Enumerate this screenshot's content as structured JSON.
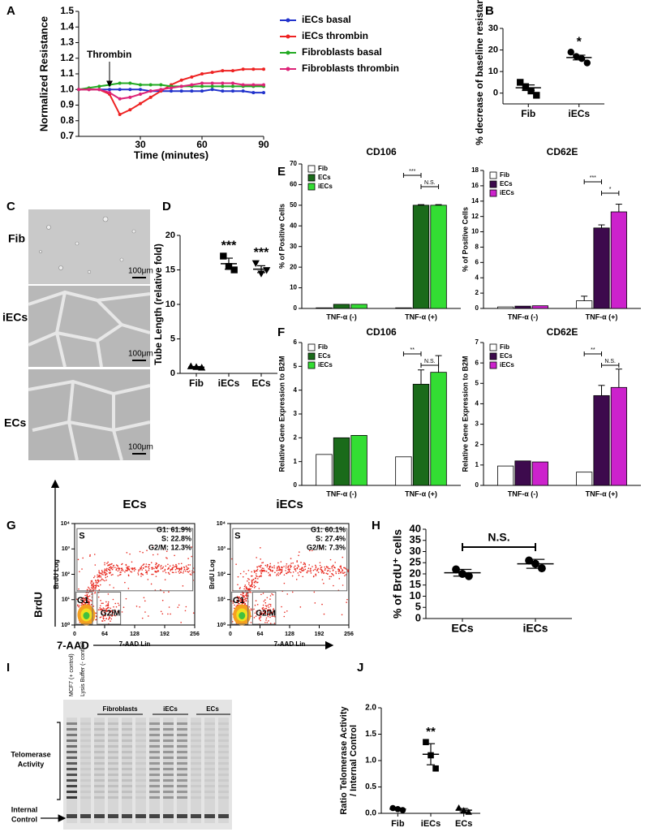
{
  "chart_data": [
    {
      "type": "line",
      "xlabel": "Time (minutes)",
      "ylabel": "Normalized Resistance",
      "annotation": "Thrombin",
      "x": [
        0,
        5,
        10,
        15,
        20,
        25,
        30,
        35,
        40,
        45,
        50,
        55,
        60,
        65,
        70,
        75,
        80,
        85,
        90
      ],
      "xlim": [
        0,
        90
      ],
      "xticks": [
        30,
        60,
        90
      ],
      "ylim": [
        0.7,
        1.5
      ],
      "yticks": [
        0.7,
        0.8,
        0.9,
        {
          "value": 1,
          "label": "1.0"
        },
        1.1,
        1.2,
        1.3,
        1.4,
        1.5
      ],
      "series": [
        {
          "name": "iECs basal",
          "color": "#2233cc",
          "values": [
            1,
            1,
            1,
            1,
            1,
            1,
            1,
            0.99,
            0.99,
            0.99,
            0.99,
            0.99,
            0.99,
            1,
            0.99,
            0.99,
            0.99,
            0.98,
            0.98
          ]
        },
        {
          "name": "iECs thrombin",
          "color": "#ee2222",
          "values": [
            1,
            1,
            1,
            0.97,
            0.84,
            0.87,
            0.91,
            0.95,
            0.99,
            1.03,
            1.06,
            1.08,
            1.1,
            1.11,
            1.12,
            1.12,
            1.13,
            1.13,
            1.13
          ]
        },
        {
          "name": "Fibroblasts basal",
          "color": "#22aa22",
          "values": [
            1,
            1.01,
            1.02,
            1.03,
            1.04,
            1.04,
            1.03,
            1.03,
            1.03,
            1.02,
            1.02,
            1.02,
            1.02,
            1.02,
            1.02,
            1.02,
            1.02,
            1.02,
            1.02
          ]
        },
        {
          "name": "Fibroblasts thrombin",
          "color": "#dd2277",
          "values": [
            1,
            1,
            1,
            0.98,
            0.94,
            0.95,
            0.97,
            0.99,
            1,
            1.01,
            1.02,
            1.03,
            1.04,
            1.04,
            1.04,
            1.04,
            1.03,
            1.03,
            1.03
          ]
        }
      ]
    },
    {
      "type": "dot",
      "ylabel": "% decrease of baseline resistance",
      "categories": [
        "Fib",
        "iECs"
      ],
      "points": [
        [
          5,
          3,
          1,
          -1
        ],
        [
          19,
          17,
          16,
          14
        ]
      ],
      "means": [
        2.5,
        16.5
      ],
      "errors": [
        1.3,
        1.1
      ],
      "markers": [
        "square",
        "circle"
      ],
      "annotations": [
        null,
        "*"
      ],
      "ylim": [
        -5,
        30
      ],
      "yticks": [
        0,
        10,
        20,
        30
      ]
    },
    {
      "type": "dot",
      "ylabel": "Tube Length (relative fold)",
      "categories": [
        "Fib",
        "iECs",
        "ECs"
      ],
      "points": [
        [
          1,
          0.9,
          0.8
        ],
        [
          17,
          15.5,
          15
        ],
        [
          16,
          14.5,
          15
        ]
      ],
      "means": [
        0.9,
        15.9,
        15.1
      ],
      "errors": [
        0.1,
        0.8,
        0.5
      ],
      "markers": [
        "triangle",
        "square",
        "triangle-down"
      ],
      "annotations": [
        null,
        "***",
        "***"
      ],
      "ylim": [
        0,
        20
      ],
      "yticks": [
        0,
        5,
        10,
        15,
        20
      ]
    },
    {
      "type": "bar",
      "title": "CD106",
      "ylabel": "% of Positive Cells",
      "categories": [
        "TNF-α (-)",
        "TNF-α (+)"
      ],
      "series": [
        {
          "name": "Fib",
          "color": "#ffffff",
          "values": [
            0.3,
            0.3
          ],
          "errors": [
            null,
            null
          ]
        },
        {
          "name": "ECs",
          "color": "#1a6b1a",
          "values": [
            2,
            50
          ],
          "errors": [
            null,
            0.3
          ]
        },
        {
          "name": "iECs",
          "color": "#33dd33",
          "values": [
            2,
            50
          ],
          "errors": [
            null,
            0.3
          ]
        }
      ],
      "brackets": [
        "***",
        "N.S."
      ],
      "ylim": [
        0,
        70
      ],
      "yticks": [
        0,
        10,
        20,
        30,
        40,
        50,
        60,
        70
      ]
    },
    {
      "type": "bar",
      "title": "CD62E",
      "ylabel": "% of Positive Cells",
      "categories": [
        "TNF-α (-)",
        "TNF-α (+)"
      ],
      "series": [
        {
          "name": "Fib",
          "color": "#ffffff",
          "values": [
            0.2,
            1
          ],
          "errors": [
            null,
            0.6
          ]
        },
        {
          "name": "ECs",
          "color": "#3d0a4d",
          "values": [
            0.3,
            10.5
          ],
          "errors": [
            null,
            0.4
          ]
        },
        {
          "name": "iECs",
          "color": "#cc22cc",
          "values": [
            0.35,
            12.6
          ],
          "errors": [
            null,
            1
          ]
        }
      ],
      "brackets": [
        "***",
        "*"
      ],
      "ylim": [
        0,
        18
      ],
      "yticks": [
        0,
        2,
        4,
        6,
        8,
        10,
        12,
        14,
        16,
        18
      ]
    },
    {
      "type": "bar",
      "title": "CD106",
      "ylabel": "Relative Gene Expression to B2M",
      "categories": [
        "TNF-α (-)",
        "TNF-α (+)"
      ],
      "series": [
        {
          "name": "Fib",
          "color": "#ffffff",
          "values": [
            1.3,
            1.2
          ],
          "errors": [
            null,
            null
          ]
        },
        {
          "name": "ECs",
          "color": "#1a6b1a",
          "values": [
            2,
            4.25
          ],
          "errors": [
            null,
            0.6
          ]
        },
        {
          "name": "iECs",
          "color": "#33dd33",
          "values": [
            2.1,
            4.75
          ],
          "errors": [
            null,
            0.7
          ]
        }
      ],
      "brackets": [
        "**",
        "N.S."
      ],
      "ylim": [
        0,
        6
      ],
      "yticks": [
        0,
        1,
        2,
        3,
        4,
        5,
        6
      ]
    },
    {
      "type": "bar",
      "title": "CD62E",
      "ylabel": "Relative Gene Expression to B2M",
      "categories": [
        "TNF-α (-)",
        "TNF-α (+)"
      ],
      "series": [
        {
          "name": "Fib",
          "color": "#ffffff",
          "values": [
            0.95,
            0.65
          ],
          "errors": [
            null,
            null
          ]
        },
        {
          "name": "ECs",
          "color": "#3d0a4d",
          "values": [
            1.2,
            4.4
          ],
          "errors": [
            null,
            0.5
          ]
        },
        {
          "name": "iECs",
          "color": "#cc22cc",
          "values": [
            1.15,
            4.8
          ],
          "errors": [
            null,
            0.9
          ]
        }
      ],
      "brackets": [
        "**",
        "N.S."
      ],
      "ylim": [
        0,
        7
      ],
      "yticks": [
        0,
        1,
        2,
        3,
        4,
        5,
        6,
        7
      ]
    },
    {
      "type": "density",
      "title": "ECs",
      "xlabel": "7-AAD Lin",
      "ylabel": "BrdU Log",
      "stats": [
        "G1: 61.9%",
        "S: 22.8%",
        "G2/M: 12.3%"
      ],
      "gates": [
        "S",
        "G1",
        "G2/M"
      ],
      "xlim": [
        0,
        256
      ],
      "xticks": [
        0,
        64,
        128,
        192,
        256
      ],
      "log_y": true,
      "ylim": [
        1,
        10000
      ],
      "yticks": [
        {
          "value": 1,
          "label": "10⁰"
        },
        {
          "value": 10,
          "label": "10¹"
        },
        {
          "value": 100,
          "label": "10²"
        },
        {
          "value": 1000,
          "label": "10³"
        },
        {
          "value": 10000,
          "label": "10⁴"
        }
      ]
    },
    {
      "type": "density",
      "title": "iECs",
      "xlabel": "7-AAD Lin",
      "ylabel": "BrdU Log",
      "stats": [
        "G1: 60.1%",
        "S: 27.4%",
        "G2/M: 7.3%"
      ],
      "gates": [
        "S",
        "G1",
        "G2/M"
      ],
      "xlim": [
        0,
        256
      ],
      "xticks": [
        0,
        64,
        128,
        192,
        256
      ],
      "log_y": true,
      "ylim": [
        1,
        10000
      ],
      "yticks": [
        {
          "value": 1,
          "label": "10⁰"
        },
        {
          "value": 10,
          "label": "10¹"
        },
        {
          "value": 100,
          "label": "10²"
        },
        {
          "value": 1000,
          "label": "10³"
        },
        {
          "value": 10000,
          "label": "10⁴"
        }
      ]
    },
    {
      "type": "dot",
      "ylabel": "% of BrdU⁺ cells",
      "categories": [
        "ECs",
        "iECs"
      ],
      "points": [
        [
          22,
          20,
          19
        ],
        [
          26,
          24.5,
          22.5
        ]
      ],
      "means": [
        20.5,
        24.5
      ],
      "errors": [
        1.5,
        2
      ],
      "markers": [
        "circle",
        "circle"
      ],
      "bracket": "N.S.",
      "ylim": [
        0,
        40
      ],
      "yticks": [
        0,
        5,
        10,
        15,
        20,
        25,
        30,
        35,
        40
      ]
    },
    {
      "type": "dot",
      "ylabel": [
        "Ratio Telomerase Activity",
        "/ Internal Control"
      ],
      "categories": [
        "Fib",
        "iECs",
        "ECs"
      ],
      "points": [
        [
          0.1,
          0.08,
          0.06
        ],
        [
          1.35,
          1.1,
          0.85
        ],
        [
          0.1,
          0.05,
          0.02
        ]
      ],
      "means": [
        0.08,
        1.12,
        0.06
      ],
      "errors": [
        0.02,
        0.2,
        0.03
      ],
      "markers": [
        "circle",
        "square",
        "triangle"
      ],
      "annotations": [
        null,
        "**",
        null
      ],
      "ylim": [
        0,
        2
      ],
      "yticks": [
        {
          "value": 0,
          "label": "0.0"
        },
        0.5,
        {
          "value": 1,
          "label": "1.0"
        },
        1.5,
        {
          "value": 2,
          "label": "2.0"
        }
      ]
    }
  ],
  "panel_letters": [
    "A",
    "B",
    "C",
    "D",
    "E",
    "F",
    "G",
    "H",
    "I",
    "J"
  ],
  "micrographs": {
    "labels": [
      "Fib",
      "iECs",
      "ECs"
    ],
    "scale": "100μm"
  },
  "flow_axes": {
    "y": "BrdU",
    "x": "7-AAD"
  },
  "gel": {
    "lanes": [
      "MCF7 (+ control)",
      "Lysis Buffer (- control)"
    ],
    "groups": [
      "Fibroblasts",
      "iECs",
      "ECs"
    ],
    "telomerase": [
      "Telomerase",
      "Activity"
    ],
    "internal": [
      "Internal",
      "Control"
    ]
  }
}
